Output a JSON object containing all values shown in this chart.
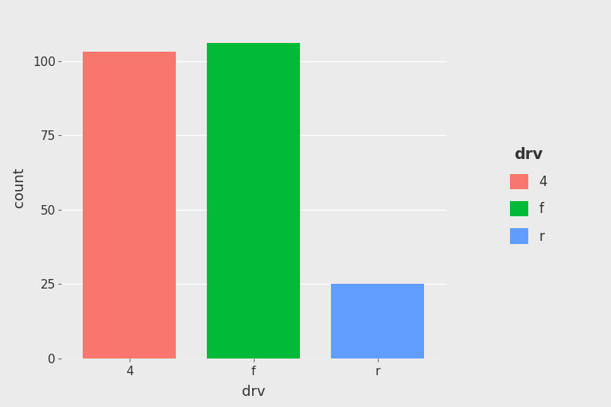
{
  "categories": [
    "4",
    "f",
    "r"
  ],
  "values": [
    103,
    106,
    25
  ],
  "bar_colors": [
    "#F8766D",
    "#00BA38",
    "#619CFF"
  ],
  "legend_title": "drv",
  "legend_labels": [
    "4",
    "f",
    "r"
  ],
  "xlabel": "drv",
  "ylabel": "count",
  "ylim": [
    0,
    115
  ],
  "yticks": [
    0,
    25,
    50,
    75,
    100
  ],
  "panel_background": "#EBEBEB",
  "outer_background": "#EBEBEB",
  "legend_background": "#FFFFFF",
  "grid_color": "#FFFFFF",
  "bar_width": 0.75,
  "axis_label_fontsize": 13,
  "tick_fontsize": 11,
  "legend_fontsize": 12,
  "legend_title_fontsize": 14
}
